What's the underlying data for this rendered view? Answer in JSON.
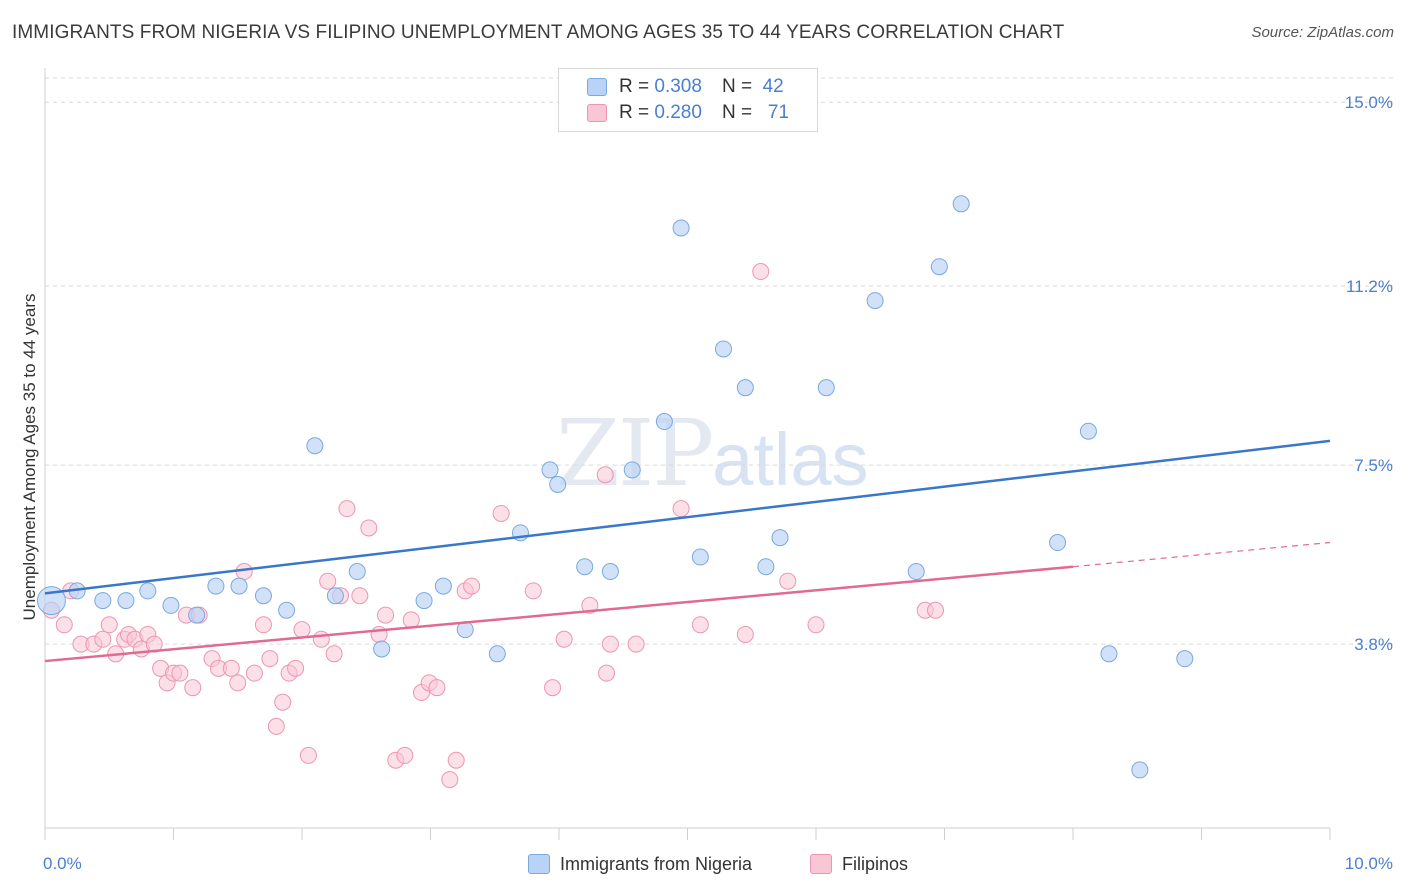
{
  "title": "IMMIGRANTS FROM NIGERIA VS FILIPINO UNEMPLOYMENT AMONG AGES 35 TO 44 YEARS CORRELATION CHART",
  "source": "Source: ZipAtlas.com",
  "watermark": {
    "zip": "ZIP",
    "atlas": "atlas"
  },
  "legend": {
    "rows": [
      {
        "r_label": "R =",
        "r_value": "0.308",
        "n_label": "N =",
        "n_value": "42"
      },
      {
        "r_label": "R =",
        "r_value": "0.280",
        "n_label": "N =",
        "n_value": "71"
      }
    ]
  },
  "colors": {
    "nigeria_fill": "#b8d3f5",
    "nigeria_stroke": "#7aa8e0",
    "nigeria_line": "#3a77c8",
    "filipino_fill": "#f9c6d6",
    "filipino_stroke": "#ec95b2",
    "filipino_line": "#e06a93",
    "tick_label": "#4a7fd0",
    "grid": "#d9d9d9"
  },
  "chart_data": {
    "type": "scatter",
    "ylabel": "Unemployment Among Ages 35 to 44 years",
    "xlabel": "",
    "xlim": [
      0,
      10
    ],
    "ylim": [
      0,
      15.5
    ],
    "x_tick_labels": [
      "0.0%",
      "10.0%"
    ],
    "y_ticks": [
      {
        "value": 3.8,
        "label": "3.8%"
      },
      {
        "value": 7.5,
        "label": "7.5%"
      },
      {
        "value": 11.2,
        "label": "11.2%"
      },
      {
        "value": 15.0,
        "label": "15.0%"
      }
    ],
    "grid": "horizontal dashed",
    "series": [
      {
        "name": "Immigrants from Nigeria",
        "points": [
          [
            0.05,
            4.7
          ],
          [
            0.25,
            4.9
          ],
          [
            0.45,
            4.7
          ],
          [
            0.63,
            4.7
          ],
          [
            0.8,
            4.9
          ],
          [
            0.98,
            4.6
          ],
          [
            1.18,
            4.4
          ],
          [
            1.33,
            5.0
          ],
          [
            1.51,
            5.0
          ],
          [
            1.7,
            4.8
          ],
          [
            1.88,
            4.5
          ],
          [
            2.1,
            7.9
          ],
          [
            2.26,
            4.8
          ],
          [
            2.43,
            5.3
          ],
          [
            2.62,
            3.7
          ],
          [
            2.95,
            4.7
          ],
          [
            3.1,
            5.0
          ],
          [
            3.27,
            4.1
          ],
          [
            3.52,
            3.6
          ],
          [
            3.7,
            6.1
          ],
          [
            3.93,
            7.4
          ],
          [
            3.99,
            7.1
          ],
          [
            4.2,
            5.4
          ],
          [
            4.4,
            5.3
          ],
          [
            4.57,
            7.4
          ],
          [
            4.82,
            8.4
          ],
          [
            4.95,
            12.4
          ],
          [
            5.1,
            5.6
          ],
          [
            5.28,
            9.9
          ],
          [
            5.45,
            9.1
          ],
          [
            5.61,
            5.4
          ],
          [
            5.72,
            6.0
          ],
          [
            6.08,
            9.1
          ],
          [
            6.46,
            10.9
          ],
          [
            6.78,
            5.3
          ],
          [
            6.96,
            11.6
          ],
          [
            7.13,
            12.9
          ],
          [
            7.88,
            5.9
          ],
          [
            8.12,
            8.2
          ],
          [
            8.28,
            3.6
          ],
          [
            8.52,
            1.2
          ],
          [
            8.87,
            3.5
          ]
        ],
        "trend": {
          "x": [
            0,
            10
          ],
          "y": [
            4.85,
            8.0
          ]
        }
      },
      {
        "name": "Filipinos",
        "points": [
          [
            0.05,
            4.5
          ],
          [
            0.15,
            4.2
          ],
          [
            0.2,
            4.9
          ],
          [
            0.28,
            3.8
          ],
          [
            0.38,
            3.8
          ],
          [
            0.45,
            3.9
          ],
          [
            0.5,
            4.2
          ],
          [
            0.55,
            3.6
          ],
          [
            0.62,
            3.9
          ],
          [
            0.65,
            4.0
          ],
          [
            0.7,
            3.9
          ],
          [
            0.75,
            3.7
          ],
          [
            0.8,
            4.0
          ],
          [
            0.85,
            3.8
          ],
          [
            0.9,
            3.3
          ],
          [
            0.95,
            3.0
          ],
          [
            1.0,
            3.2
          ],
          [
            1.05,
            3.2
          ],
          [
            1.1,
            4.4
          ],
          [
            1.15,
            2.9
          ],
          [
            1.2,
            4.4
          ],
          [
            1.3,
            3.5
          ],
          [
            1.35,
            3.3
          ],
          [
            1.45,
            3.3
          ],
          [
            1.5,
            3.0
          ],
          [
            1.55,
            5.3
          ],
          [
            1.63,
            3.2
          ],
          [
            1.7,
            4.2
          ],
          [
            1.75,
            3.5
          ],
          [
            1.8,
            2.1
          ],
          [
            1.85,
            2.6
          ],
          [
            1.9,
            3.2
          ],
          [
            1.95,
            3.3
          ],
          [
            2.0,
            4.1
          ],
          [
            2.05,
            1.5
          ],
          [
            2.15,
            3.9
          ],
          [
            2.2,
            5.1
          ],
          [
            2.25,
            3.6
          ],
          [
            2.3,
            4.8
          ],
          [
            2.35,
            6.6
          ],
          [
            2.45,
            4.8
          ],
          [
            2.52,
            6.2
          ],
          [
            2.6,
            4.0
          ],
          [
            2.65,
            4.4
          ],
          [
            2.73,
            1.4
          ],
          [
            2.8,
            1.5
          ],
          [
            2.85,
            4.3
          ],
          [
            2.93,
            2.8
          ],
          [
            2.99,
            3.0
          ],
          [
            3.05,
            2.9
          ],
          [
            3.15,
            1.0
          ],
          [
            3.2,
            1.4
          ],
          [
            3.27,
            4.9
          ],
          [
            3.32,
            5.0
          ],
          [
            3.55,
            6.5
          ],
          [
            3.8,
            4.9
          ],
          [
            3.95,
            2.9
          ],
          [
            4.04,
            3.9
          ],
          [
            4.24,
            4.6
          ],
          [
            4.36,
            7.3
          ],
          [
            4.37,
            3.2
          ],
          [
            4.4,
            3.8
          ],
          [
            4.6,
            3.8
          ],
          [
            4.95,
            6.6
          ],
          [
            5.1,
            4.2
          ],
          [
            5.45,
            4.0
          ],
          [
            5.57,
            11.5
          ],
          [
            5.78,
            5.1
          ],
          [
            6.85,
            4.5
          ],
          [
            6.93,
            4.5
          ],
          [
            6.0,
            4.2
          ]
        ],
        "trend": {
          "x": [
            0,
            8.0
          ],
          "y": [
            3.45,
            5.4
          ]
        },
        "trend_dashed": {
          "x": [
            8.0,
            10
          ],
          "y": [
            5.4,
            5.9
          ]
        }
      }
    ]
  }
}
